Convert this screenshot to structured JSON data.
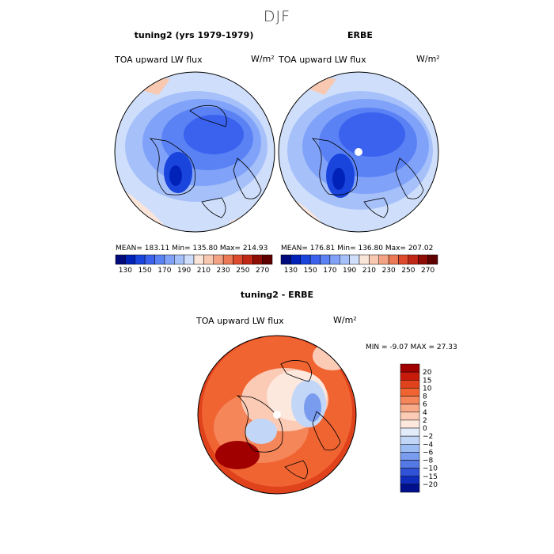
{
  "page": {
    "title": "DJF"
  },
  "panels": {
    "left": {
      "title": "tuning2 (yrs 1979-1979)",
      "variable": "TOA upward LW flux",
      "units": "W/m²",
      "stats": "MEAN= 183.11   Min= 135.80   Max= 214.93"
    },
    "right": {
      "title": "ERBE",
      "variable": "TOA upward LW flux",
      "units": "W/m²",
      "stats": "MEAN= 176.81   Min= 136.80   Max= 207.02"
    },
    "diff": {
      "title": "tuning2 - ERBE",
      "variable": "TOA upward LW flux",
      "units": "W/m²",
      "stats": "MIN =   -9.07 MAX =   27.33"
    }
  },
  "chart_data": [
    {
      "type": "heatmap",
      "title": "tuning2 (yrs 1979-1979)",
      "subtitle": "TOA upward LW flux",
      "units": "W/m²",
      "projection": "north polar stereographic",
      "stats": {
        "mean": 183.11,
        "min": 135.8,
        "max": 214.93
      },
      "colorbar": {
        "levels": [
          130,
          140,
          150,
          160,
          170,
          180,
          190,
          200,
          210,
          220,
          230,
          240,
          250,
          260,
          270
        ],
        "tick_labels": [
          "130",
          "150",
          "170",
          "190",
          "210",
          "230",
          "250",
          "270"
        ],
        "colors": [
          "#000a7a",
          "#0022b8",
          "#1a45dc",
          "#3a62ee",
          "#5a82f4",
          "#80a2f8",
          "#a6c0fa",
          "#cfdffb",
          "#fbe5d9",
          "#f8c8b0",
          "#f3a384",
          "#ec7855",
          "#dd4a2c",
          "#c02714",
          "#8e0e06",
          "#5e0000"
        ],
        "position": "bottom"
      }
    },
    {
      "type": "heatmap",
      "title": "ERBE",
      "subtitle": "TOA upward LW flux",
      "units": "W/m²",
      "projection": "north polar stereographic",
      "stats": {
        "mean": 176.81,
        "min": 136.8,
        "max": 207.02
      },
      "colorbar": {
        "levels": [
          130,
          140,
          150,
          160,
          170,
          180,
          190,
          200,
          210,
          220,
          230,
          240,
          250,
          260,
          270
        ],
        "tick_labels": [
          "130",
          "150",
          "170",
          "190",
          "210",
          "230",
          "250",
          "270"
        ],
        "colors": [
          "#000a7a",
          "#0022b8",
          "#1a45dc",
          "#3a62ee",
          "#5a82f4",
          "#80a2f8",
          "#a6c0fa",
          "#cfdffb",
          "#fbe5d9",
          "#f8c8b0",
          "#f3a384",
          "#ec7855",
          "#dd4a2c",
          "#c02714",
          "#8e0e06",
          "#5e0000"
        ],
        "position": "bottom"
      }
    },
    {
      "type": "heatmap",
      "title": "tuning2 - ERBE",
      "subtitle": "TOA upward LW flux",
      "units": "W/m²",
      "projection": "north polar stereographic",
      "stats": {
        "min": -9.07,
        "max": 27.33
      },
      "colorbar": {
        "levels": [
          -20,
          -15,
          -10,
          -8,
          -6,
          -4,
          -2,
          0,
          2,
          4,
          6,
          8,
          10,
          15,
          20
        ],
        "tick_labels": [
          "20",
          "15",
          "10",
          "8",
          "6",
          "4",
          "2",
          "0",
          "−2",
          "−4",
          "−6",
          "−8",
          "−10",
          "−15",
          "−20"
        ],
        "colors": [
          "#a00000",
          "#c81a0a",
          "#e0421c",
          "#f06432",
          "#f5865a",
          "#f8aa88",
          "#fbcbb6",
          "#fde8de",
          "#e2ecfa",
          "#c2d6f8",
          "#9ebcf4",
          "#7a9cee",
          "#5478e4",
          "#2f52d6",
          "#0f2cbc",
          "#00108c"
        ],
        "position": "right"
      }
    }
  ]
}
